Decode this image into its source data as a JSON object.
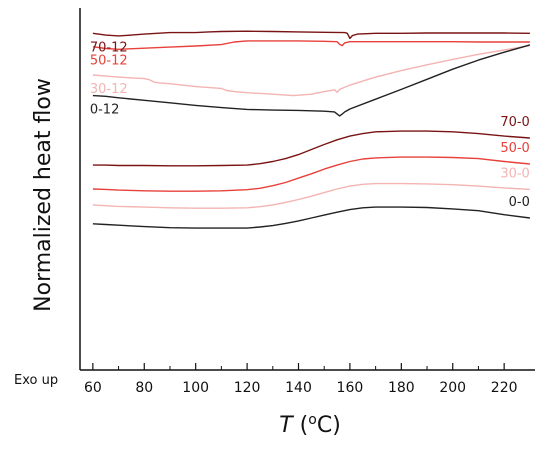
{
  "chart_data": {
    "type": "line",
    "xlabel": {
      "var": "T",
      "open": " (",
      "deg": "o",
      "close": "C)"
    },
    "ylabel": "Normalized heat flow",
    "corner_note": "Exo up",
    "xlim": [
      55,
      232
    ],
    "ylim": [
      0,
      100
    ],
    "xticks": [
      60,
      80,
      100,
      120,
      140,
      160,
      180,
      200,
      220
    ],
    "y_axis_ticks_shown": false,
    "grid": false,
    "legend": "none (labels placed next to curves)",
    "colors": {
      "70-12": "#7a1414",
      "50-12": "#e8403a",
      "30-12": "#f3b4b2",
      "0-12": "#222222",
      "70-0": "#7a1414",
      "50-0": "#e8403a",
      "30-0": "#f3b4b2",
      "0-0": "#222222"
    },
    "series": [
      {
        "name": "70-12",
        "label_pos": "left",
        "points": [
          [
            60,
            93
          ],
          [
            65,
            92.5
          ],
          [
            70,
            92.3
          ],
          [
            75,
            92.5
          ],
          [
            80,
            92.8
          ],
          [
            90,
            93.2
          ],
          [
            100,
            93.2
          ],
          [
            105,
            93.4
          ],
          [
            110,
            93.5
          ],
          [
            120,
            93.6
          ],
          [
            130,
            93.5
          ],
          [
            140,
            93.4
          ],
          [
            150,
            93.3
          ],
          [
            158,
            93.2
          ],
          [
            159,
            93.0
          ],
          [
            160,
            91.6
          ],
          [
            161,
            92.4
          ],
          [
            163,
            92.8
          ],
          [
            170,
            93.0
          ],
          [
            180,
            93.0
          ],
          [
            190,
            93.1
          ],
          [
            200,
            93.1
          ],
          [
            210,
            93.1
          ],
          [
            220,
            93.1
          ],
          [
            230,
            93.0
          ]
        ]
      },
      {
        "name": "50-12",
        "label_pos": "left",
        "points": [
          [
            60,
            89.3
          ],
          [
            65,
            88.8
          ],
          [
            70,
            88.6
          ],
          [
            80,
            88.9
          ],
          [
            90,
            89.2
          ],
          [
            100,
            89.5
          ],
          [
            110,
            89.9
          ],
          [
            115,
            90.6
          ],
          [
            120,
            90.9
          ],
          [
            130,
            90.9
          ],
          [
            140,
            90.9
          ],
          [
            150,
            90.8
          ],
          [
            155,
            90.7
          ],
          [
            156,
            90.0
          ],
          [
            157,
            89.6
          ],
          [
            158,
            90.4
          ],
          [
            160,
            90.7
          ],
          [
            170,
            90.7
          ],
          [
            180,
            90.7
          ],
          [
            190,
            90.7
          ],
          [
            200,
            90.7
          ],
          [
            210,
            90.6
          ],
          [
            220,
            90.6
          ],
          [
            230,
            90.6
          ]
        ]
      },
      {
        "name": "30-12",
        "label_pos": "left",
        "points": [
          [
            60,
            81.5
          ],
          [
            65,
            81.2
          ],
          [
            70,
            80.9
          ],
          [
            75,
            80.7
          ],
          [
            80,
            80.5
          ],
          [
            82,
            80.2
          ],
          [
            84,
            79.5
          ],
          [
            86,
            79.3
          ],
          [
            90,
            79.1
          ],
          [
            100,
            78.3
          ],
          [
            110,
            77.8
          ],
          [
            112,
            77.2
          ],
          [
            115,
            76.9
          ],
          [
            120,
            76.6
          ],
          [
            130,
            76.2
          ],
          [
            138,
            75.8
          ],
          [
            145,
            76.2
          ],
          [
            150,
            76.9
          ],
          [
            154,
            77.4
          ],
          [
            155,
            76.7
          ],
          [
            156,
            77.5
          ],
          [
            160,
            78.7
          ],
          [
            170,
            80.9
          ],
          [
            180,
            82.7
          ],
          [
            190,
            84.3
          ],
          [
            200,
            85.8
          ],
          [
            210,
            87.2
          ],
          [
            220,
            88.4
          ],
          [
            230,
            89.6
          ]
        ]
      },
      {
        "name": "0-12",
        "label_pos": "left",
        "points": [
          [
            60,
            75.8
          ],
          [
            65,
            75.6
          ],
          [
            70,
            75.2
          ],
          [
            80,
            74.5
          ],
          [
            90,
            73.8
          ],
          [
            100,
            73.1
          ],
          [
            110,
            72.5
          ],
          [
            120,
            72.0
          ],
          [
            130,
            71.8
          ],
          [
            140,
            71.7
          ],
          [
            150,
            71.5
          ],
          [
            154,
            71.3
          ],
          [
            156,
            70.2
          ],
          [
            157,
            70.7
          ],
          [
            158,
            71.3
          ],
          [
            160,
            72.1
          ],
          [
            170,
            74.8
          ],
          [
            180,
            77.5
          ],
          [
            190,
            80.3
          ],
          [
            200,
            83.1
          ],
          [
            210,
            85.6
          ],
          [
            220,
            87.8
          ],
          [
            230,
            89.8
          ]
        ]
      },
      {
        "name": "70-0",
        "label_pos": "right",
        "points": [
          [
            60,
            56.6
          ],
          [
            65,
            56.6
          ],
          [
            70,
            56.5
          ],
          [
            80,
            56.5
          ],
          [
            90,
            56.4
          ],
          [
            100,
            56.4
          ],
          [
            110,
            56.5
          ],
          [
            120,
            56.6
          ],
          [
            125,
            57.0
          ],
          [
            130,
            57.6
          ],
          [
            135,
            58.4
          ],
          [
            140,
            59.5
          ],
          [
            145,
            60.9
          ],
          [
            150,
            62.3
          ],
          [
            155,
            63.6
          ],
          [
            160,
            64.6
          ],
          [
            165,
            65.3
          ],
          [
            170,
            65.8
          ],
          [
            180,
            66.0
          ],
          [
            190,
            66.0
          ],
          [
            200,
            65.8
          ],
          [
            210,
            65.3
          ],
          [
            220,
            64.6
          ],
          [
            230,
            64.1
          ]
        ]
      },
      {
        "name": "50-0",
        "label_pos": "right",
        "points": [
          [
            60,
            50.0
          ],
          [
            65,
            49.9
          ],
          [
            70,
            49.7
          ],
          [
            80,
            49.5
          ],
          [
            90,
            49.4
          ],
          [
            100,
            49.4
          ],
          [
            110,
            49.5
          ],
          [
            120,
            49.8
          ],
          [
            125,
            50.2
          ],
          [
            130,
            50.9
          ],
          [
            135,
            51.8
          ],
          [
            140,
            53.0
          ],
          [
            145,
            54.2
          ],
          [
            150,
            55.5
          ],
          [
            155,
            56.6
          ],
          [
            160,
            57.6
          ],
          [
            165,
            58.3
          ],
          [
            170,
            58.6
          ],
          [
            180,
            58.8
          ],
          [
            190,
            58.8
          ],
          [
            200,
            58.7
          ],
          [
            210,
            58.4
          ],
          [
            220,
            57.6
          ],
          [
            230,
            56.9
          ]
        ]
      },
      {
        "name": "30-0",
        "label_pos": "right",
        "points": [
          [
            60,
            45.6
          ],
          [
            65,
            45.4
          ],
          [
            70,
            45.2
          ],
          [
            80,
            45.0
          ],
          [
            90,
            44.8
          ],
          [
            100,
            44.7
          ],
          [
            110,
            44.7
          ],
          [
            120,
            44.8
          ],
          [
            125,
            45.1
          ],
          [
            130,
            45.6
          ],
          [
            135,
            46.3
          ],
          [
            140,
            47.1
          ],
          [
            145,
            48.0
          ],
          [
            150,
            49.0
          ],
          [
            155,
            50.0
          ],
          [
            160,
            50.8
          ],
          [
            165,
            51.3
          ],
          [
            170,
            51.5
          ],
          [
            180,
            51.5
          ],
          [
            190,
            51.4
          ],
          [
            200,
            51.2
          ],
          [
            210,
            50.8
          ],
          [
            220,
            50.3
          ],
          [
            230,
            49.9
          ]
        ]
      },
      {
        "name": "0-0",
        "label_pos": "right",
        "points": [
          [
            60,
            40.4
          ],
          [
            65,
            40.2
          ],
          [
            70,
            40.0
          ],
          [
            80,
            39.6
          ],
          [
            90,
            39.3
          ],
          [
            100,
            39.2
          ],
          [
            110,
            39.2
          ],
          [
            120,
            39.2
          ],
          [
            125,
            39.5
          ],
          [
            130,
            39.9
          ],
          [
            135,
            40.5
          ],
          [
            140,
            41.2
          ],
          [
            145,
            42.0
          ],
          [
            150,
            42.8
          ],
          [
            155,
            43.6
          ],
          [
            160,
            44.3
          ],
          [
            165,
            44.8
          ],
          [
            170,
            45.0
          ],
          [
            180,
            45.0
          ],
          [
            190,
            44.9
          ],
          [
            200,
            44.5
          ],
          [
            210,
            44.0
          ],
          [
            220,
            42.9
          ],
          [
            230,
            42.0
          ]
        ]
      }
    ]
  }
}
